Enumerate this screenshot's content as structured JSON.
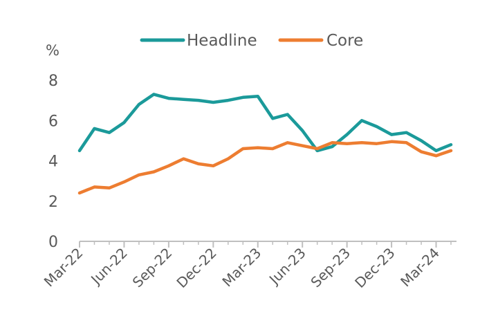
{
  "chart_data": {
    "type": "line",
    "y_unit": "%",
    "x": [
      "Mar-22",
      "Apr-22",
      "May-22",
      "Jun-22",
      "Jul-22",
      "Aug-22",
      "Sep-22",
      "Oct-22",
      "Nov-22",
      "Dec-22",
      "Jan-23",
      "Feb-23",
      "Mar-23",
      "Apr-23",
      "May-23",
      "Jun-23",
      "Jul-23",
      "Aug-23",
      "Sep-23",
      "Oct-23",
      "Nov-23",
      "Dec-23",
      "Jan-24",
      "Feb-24",
      "Mar-24",
      "Apr-24"
    ],
    "x_tick_labels": [
      "Mar-22",
      "Jun-22",
      "Sep-22",
      "Dec-22",
      "Mar-23",
      "Jun-23",
      "Sep-23",
      "Dec-23",
      "Mar-24"
    ],
    "y_ticks": [
      0,
      2,
      4,
      6,
      8
    ],
    "ylim": [
      0,
      8
    ],
    "grid": false,
    "legend_position": "top",
    "series": [
      {
        "name": "Headline",
        "color": "#1b9a9a",
        "values": [
          4.5,
          5.6,
          5.4,
          5.9,
          6.8,
          7.3,
          7.1,
          7.05,
          7.0,
          6.9,
          7.0,
          7.15,
          7.2,
          6.1,
          6.3,
          5.5,
          4.5,
          4.7,
          5.3,
          6.0,
          5.7,
          5.3,
          5.4,
          5.0,
          4.5,
          4.8
        ]
      },
      {
        "name": "Core",
        "color": "#ed7d31",
        "values": [
          2.4,
          2.7,
          2.65,
          2.95,
          3.3,
          3.45,
          3.75,
          4.1,
          3.85,
          3.75,
          4.1,
          4.6,
          4.65,
          4.6,
          4.9,
          4.75,
          4.6,
          4.9,
          4.85,
          4.9,
          4.85,
          4.95,
          4.9,
          4.45,
          4.25,
          4.5
        ]
      }
    ]
  }
}
